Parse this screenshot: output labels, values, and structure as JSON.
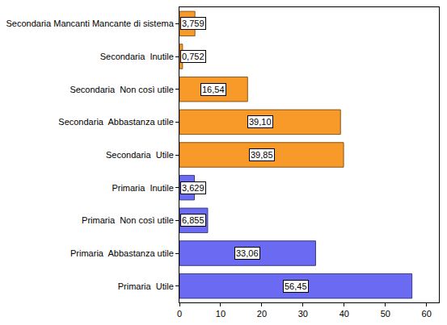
{
  "chart_data": {
    "type": "bar",
    "orientation": "horizontal",
    "categories": [
      "Secondaria Mancanti Mancante di sistema",
      "Secondaria  Inutile",
      "Secondaria  Non così utile",
      "Secondaria  Abbastanza utile",
      "Secondaria  Utile",
      "Primaria  Inutile",
      "Primaria  Non così utile",
      "Primaria  Abbastanza utile",
      "Primaria  Utile"
    ],
    "values": [
      3.759,
      0.752,
      16.54,
      39.1,
      39.85,
      3.629,
      6.855,
      33.06,
      56.45
    ],
    "value_labels": [
      "3,759",
      "0,752",
      "16,54",
      "39,10",
      "39,85",
      "3,629",
      "6,855",
      "33,06",
      "56,45"
    ],
    "colors": [
      "#f79a2a",
      "#f79a2a",
      "#f79a2a",
      "#f79a2a",
      "#f79a2a",
      "#6a6af2",
      "#6a6af2",
      "#6a6af2",
      "#6a6af2"
    ],
    "data_labels": true,
    "xlim": [
      0,
      63
    ],
    "xticks": [
      0,
      10,
      20,
      30,
      40,
      50,
      60
    ],
    "grid": false
  }
}
